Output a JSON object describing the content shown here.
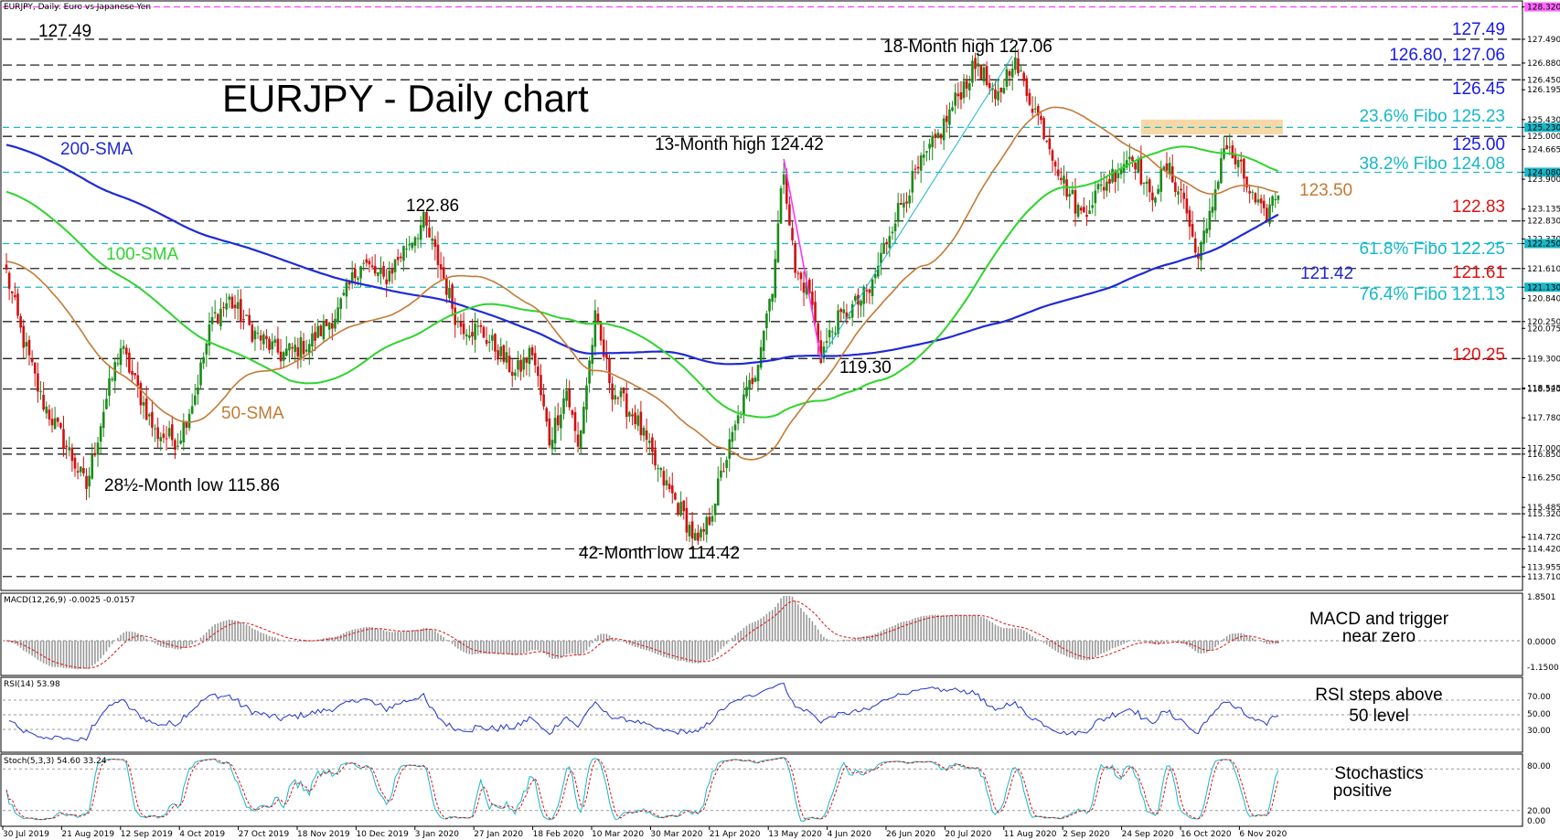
{
  "window_title": "EURJPY, Daily:  Euro vs Japanese Yen",
  "chart_title": "EURJPY - Daily chart",
  "chart_data": {
    "type": "candlestick",
    "symbol": "EURJPY",
    "timeframe": "Daily",
    "ylim": [
      113.4,
      128.45
    ],
    "x_tick_labels": [
      "30 Jul 2019",
      "21 Aug 2019",
      "12 Sep 2019",
      "4 Oct 2019",
      "27 Oct 2019",
      "18 Nov 2019",
      "10 Dec 2019",
      "3 Jan 2020",
      "27 Jan 2020",
      "18 Feb 2020",
      "10 Mar 2020",
      "30 Mar 2020",
      "21 Apr 2020",
      "13 May 2020",
      "4 Jun 2020",
      "26 Jun 2020",
      "20 Jul 2020",
      "11 Aug 2020",
      "2 Sep 2020",
      "24 Sep 2020",
      "16 Oct 2020",
      "6 Nov 2020"
    ],
    "price_anchors": [
      [
        0,
        121.5
      ],
      [
        5,
        120.0
      ],
      [
        12,
        118.3
      ],
      [
        20,
        117.2
      ],
      [
        28,
        116.0
      ],
      [
        34,
        118.0
      ],
      [
        40,
        119.6
      ],
      [
        46,
        118.5
      ],
      [
        52,
        117.4
      ],
      [
        60,
        117.2
      ],
      [
        66,
        118.4
      ],
      [
        72,
        120.3
      ],
      [
        78,
        120.8
      ],
      [
        86,
        120.0
      ],
      [
        96,
        119.4
      ],
      [
        106,
        119.7
      ],
      [
        116,
        120.5
      ],
      [
        124,
        121.8
      ],
      [
        132,
        121.3
      ],
      [
        140,
        122.2
      ],
      [
        146,
        122.8
      ],
      [
        152,
        121.6
      ],
      [
        158,
        120.2
      ],
      [
        166,
        120.0
      ],
      [
        172,
        119.5
      ],
      [
        178,
        118.9
      ],
      [
        184,
        119.5
      ],
      [
        190,
        117.2
      ],
      [
        196,
        118.5
      ],
      [
        200,
        117.0
      ],
      [
        206,
        120.3
      ],
      [
        212,
        118.5
      ],
      [
        220,
        117.8
      ],
      [
        228,
        116.4
      ],
      [
        236,
        115.4
      ],
      [
        242,
        114.5
      ],
      [
        246,
        115.2
      ],
      [
        252,
        116.8
      ],
      [
        258,
        118.2
      ],
      [
        262,
        119.0
      ],
      [
        268,
        121.2
      ],
      [
        272,
        124.2
      ],
      [
        276,
        121.5
      ],
      [
        281,
        121.0
      ],
      [
        285,
        119.4
      ],
      [
        290,
        120.2
      ],
      [
        296,
        120.6
      ],
      [
        302,
        121.0
      ],
      [
        310,
        122.8
      ],
      [
        318,
        124.0
      ],
      [
        326,
        125.0
      ],
      [
        334,
        126.2
      ],
      [
        340,
        126.9
      ],
      [
        346,
        125.8
      ],
      [
        352,
        127.0
      ],
      [
        358,
        126.0
      ],
      [
        364,
        125.0
      ],
      [
        370,
        123.8
      ],
      [
        376,
        123.0
      ],
      [
        382,
        123.6
      ],
      [
        388,
        124.1
      ],
      [
        394,
        124.6
      ],
      [
        400,
        123.4
      ],
      [
        406,
        124.2
      ],
      [
        412,
        123.4
      ],
      [
        416,
        122.0
      ],
      [
        420,
        122.5
      ],
      [
        426,
        124.8
      ],
      [
        432,
        124.1
      ],
      [
        436,
        123.4
      ],
      [
        440,
        122.9
      ],
      [
        444,
        123.5
      ]
    ],
    "levels": [
      {
        "label": "127.49",
        "price": 127.49,
        "color": "#1a1ae6",
        "style": "dash"
      },
      {
        "label": "126.80, 127.06",
        "price": 126.83,
        "color": "#1a1ae6",
        "style": "dash"
      },
      {
        "label": "126.45",
        "price": 126.45,
        "color": "#1a1ae6",
        "style": "dash"
      },
      {
        "label": "23.6% Fibo 125.23",
        "price": 125.23,
        "color": "#16b8c9",
        "style": "fibo"
      },
      {
        "label": "125.00",
        "price": 125.0,
        "color": "#1a1ae6",
        "style": "dash"
      },
      {
        "label": "38.2% Fibo 124.08",
        "price": 124.08,
        "color": "#16b8c9",
        "style": "fibo"
      },
      {
        "label": "122.83",
        "price": 122.83,
        "color": "#e01010",
        "style": "dash"
      },
      {
        "label": "61.8% Fibo 122.25",
        "price": 122.25,
        "color": "#16b8c9",
        "style": "fibo"
      },
      {
        "label": "121.61",
        "price": 121.61,
        "color": "#e01010",
        "style": "dash"
      },
      {
        "label": "76.4% Fibo 121.13",
        "price": 121.13,
        "color": "#16b8c9",
        "style": "fibo"
      },
      {
        "label": "120.25",
        "price": 120.25,
        "color": "#e01010",
        "style": "dash"
      }
    ],
    "extra_dash_levels": [
      119.3,
      118.52,
      117.0,
      116.85,
      115.32,
      114.42,
      113.71
    ],
    "right_axis_ticks": [
      {
        "t": "128.320",
        "p": 128.32,
        "hl": "#ff66ff"
      },
      {
        "t": "127.490",
        "p": 127.49
      },
      {
        "t": "126.880",
        "p": 126.88
      },
      {
        "t": "126.450",
        "p": 126.45
      },
      {
        "t": "126.195",
        "p": 126.195
      },
      {
        "t": "125.430",
        "p": 125.43
      },
      {
        "t": "125.230",
        "p": 125.23,
        "hl": "#16b8c9"
      },
      {
        "t": "125.000",
        "p": 125.0
      },
      {
        "t": "124.665",
        "p": 124.665
      },
      {
        "t": "124.080",
        "p": 124.08,
        "hl": "#16b8c9"
      },
      {
        "t": "123.900",
        "p": 123.9
      },
      {
        "t": "123.135",
        "p": 123.135
      },
      {
        "t": "122.830",
        "p": 122.83
      },
      {
        "t": "122.370",
        "p": 122.37
      },
      {
        "t": "122.250",
        "p": 122.25,
        "hl": "#16b8c9"
      },
      {
        "t": "121.610",
        "p": 121.61
      },
      {
        "t": "121.130",
        "p": 121.13,
        "hl": "#16b8c9"
      },
      {
        "t": "120.840",
        "p": 120.84
      },
      {
        "t": "120.250",
        "p": 120.25
      },
      {
        "t": "120.075",
        "p": 120.075
      },
      {
        "t": "119.300",
        "p": 119.3
      },
      {
        "t": "118.545",
        "p": 118.545
      },
      {
        "t": "118.520",
        "p": 118.52
      },
      {
        "t": "117.780",
        "p": 117.78
      },
      {
        "t": "117.000",
        "p": 117.0
      },
      {
        "t": "116.850",
        "p": 116.85
      },
      {
        "t": "116.250",
        "p": 116.25
      },
      {
        "t": "115.485",
        "p": 115.485
      },
      {
        "t": "115.320",
        "p": 115.32
      },
      {
        "t": "114.720",
        "p": 114.72
      },
      {
        "t": "114.420",
        "p": 114.42
      },
      {
        "t": "113.955",
        "p": 113.955
      },
      {
        "t": "113.710",
        "p": 113.71
      }
    ],
    "sma_labels": {
      "sma200": "200-SMA",
      "sma100": "100-SMA",
      "sma50": "50-SMA"
    },
    "annotations": {
      "top_left_level": "127.49",
      "high18": "18-Month high 127.06",
      "high13": "13-Month high 124.42",
      "p12286": "122.86",
      "p11930": "119.30",
      "low28": "28½-Month low 115.86",
      "low42": "42-Month low 114.42",
      "sma50_value": "123.50",
      "sma200_value": "121.42"
    },
    "macd": {
      "header": "MACD(12,26,9) -0.0025 -0.0157",
      "ticks": [
        "1.8501",
        "0.0000",
        "-1.1500"
      ],
      "note_line1": "MACD and trigger",
      "note_line2": "near zero"
    },
    "rsi": {
      "header": "RSI(14) 53.98",
      "ticks": [
        "70.00",
        "50.00",
        "30.00"
      ],
      "note_line1": "RSI steps above",
      "note_line2": "50 level"
    },
    "stoch": {
      "header": "Stoch(5,3,3) 54.60 33.24",
      "ticks": [
        "80.00",
        "20.00",
        "0.00"
      ],
      "note_line1": "Stochastics",
      "note_line2": "positive"
    },
    "colors": {
      "up": "#1b8a1b",
      "down": "#d01010",
      "sma200": "#1f2ad6",
      "sma100": "#2fd42f",
      "sma50": "#c47a35",
      "fibo": "#16b8c9",
      "magenta": "#ff33ff",
      "zone": "#f7d9a8"
    }
  }
}
